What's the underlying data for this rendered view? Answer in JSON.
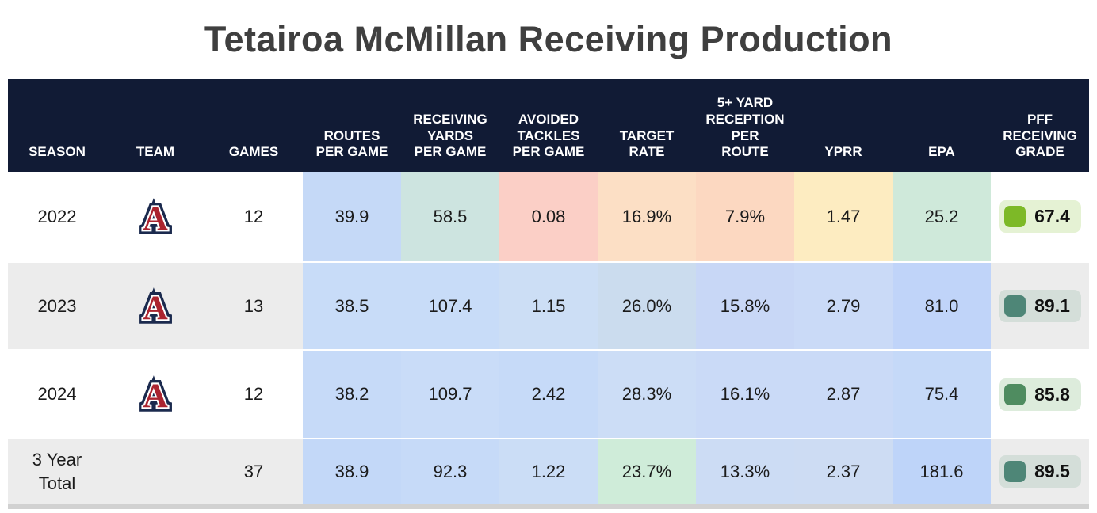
{
  "title": "Tetairoa McMillan Receiving Production",
  "colors": {
    "header_bg": "#111b35",
    "header_text": "#ffffff",
    "row_bg": "#ffffff",
    "row_alt_bg": "#ececec",
    "cell_text": "#1b1b1b",
    "title_text": "#3f3f3f",
    "scrollbar": "#d1d1d1",
    "team_navy": "#1b2a4e",
    "team_red": "#ab2430",
    "team_white": "#ffffff"
  },
  "columns": [
    "SEASON",
    "TEAM",
    "GAMES",
    "ROUTES\nPER GAME",
    "RECEIVING\nYARDS\nPER GAME",
    "AVOIDED\nTACKLES\nPER GAME",
    "TARGET\nRATE",
    "5+ YARD\nRECEPTION\nPER\nROUTE",
    "YPRR",
    "EPA",
    "PFF\nRECEIVING\nGRADE"
  ],
  "team": {
    "name": "Arizona",
    "icon": "arizona-block-a-logo"
  },
  "rows": [
    {
      "season": "2022",
      "games": "12",
      "row_bg": "#ffffff",
      "cells": [
        {
          "value": "39.9",
          "bg": "#c5d9f7"
        },
        {
          "value": "58.5",
          "bg": "#cde4e0"
        },
        {
          "value": "0.08",
          "bg": "#fbcfc6"
        },
        {
          "value": "16.9%",
          "bg": "#fcdfc5"
        },
        {
          "value": "7.9%",
          "bg": "#fcd8c1"
        },
        {
          "value": "1.47",
          "bg": "#fdecc1"
        },
        {
          "value": "25.2",
          "bg": "#cfe9da"
        }
      ],
      "grade": {
        "value": "67.4",
        "badge_bg": "#e5f2d4",
        "icon_color": "#7db927"
      }
    },
    {
      "season": "2023",
      "games": "13",
      "row_bg": "#ececec",
      "cells": [
        {
          "value": "38.5",
          "bg": "#c8dcf8"
        },
        {
          "value": "107.4",
          "bg": "#c8dcf8"
        },
        {
          "value": "1.15",
          "bg": "#ccdef5"
        },
        {
          "value": "26.0%",
          "bg": "#cbdcee"
        },
        {
          "value": "15.8%",
          "bg": "#c8d7f6"
        },
        {
          "value": "2.79",
          "bg": "#cadaf7"
        },
        {
          "value": "81.0",
          "bg": "#c0d4f9"
        }
      ],
      "grade": {
        "value": "89.1",
        "badge_bg": "#d4ded9",
        "icon_color": "#4e8677"
      }
    },
    {
      "season": "2024",
      "games": "12",
      "row_bg": "#ffffff",
      "cells": [
        {
          "value": "38.2",
          "bg": "#c6daf8"
        },
        {
          "value": "109.7",
          "bg": "#c9dcf8"
        },
        {
          "value": "2.42",
          "bg": "#c6daf8"
        },
        {
          "value": "28.3%",
          "bg": "#ccddf6"
        },
        {
          "value": "16.1%",
          "bg": "#cadaf7"
        },
        {
          "value": "2.87",
          "bg": "#cadaf7"
        },
        {
          "value": "75.4",
          "bg": "#c5d9f8"
        }
      ],
      "grade": {
        "value": "85.8",
        "badge_bg": "#ddecdc",
        "icon_color": "#4f8c60"
      }
    },
    {
      "season": "3 Year\nTotal",
      "games": "37",
      "row_bg": "#ececec",
      "cells": [
        {
          "value": "38.9",
          "bg": "#c3d8f8"
        },
        {
          "value": "92.3",
          "bg": "#c6daf8"
        },
        {
          "value": "1.22",
          "bg": "#cbddf6"
        },
        {
          "value": "23.7%",
          "bg": "#cfecd9"
        },
        {
          "value": "13.3%",
          "bg": "#ccdcf4"
        },
        {
          "value": "2.37",
          "bg": "#cddcf3"
        },
        {
          "value": "181.6",
          "bg": "#bed4f9"
        }
      ],
      "grade": {
        "value": "89.5",
        "badge_bg": "#d4ded9",
        "icon_color": "#4e8677"
      }
    }
  ],
  "chart_data": {
    "type": "table",
    "title": "Tetairoa McMillan Receiving Production",
    "columns": [
      "SEASON",
      "TEAM",
      "GAMES",
      "ROUTES PER GAME",
      "RECEIVING YARDS PER GAME",
      "AVOIDED TACKLES PER GAME",
      "TARGET RATE",
      "5+ YARD RECEPTION PER ROUTE",
      "YPRR",
      "EPA",
      "PFF RECEIVING GRADE"
    ],
    "rows": [
      [
        "2022",
        "Arizona",
        12,
        39.9,
        58.5,
        0.08,
        "16.9%",
        "7.9%",
        1.47,
        25.2,
        67.4
      ],
      [
        "2023",
        "Arizona",
        13,
        38.5,
        107.4,
        1.15,
        "26.0%",
        "15.8%",
        2.79,
        81.0,
        89.1
      ],
      [
        "2024",
        "Arizona",
        12,
        38.2,
        109.7,
        2.42,
        "28.3%",
        "16.1%",
        2.87,
        75.4,
        85.8
      ],
      [
        "3 Year Total",
        "",
        37,
        38.9,
        92.3,
        1.22,
        "23.7%",
        "13.3%",
        2.37,
        181.6,
        89.5
      ]
    ]
  }
}
